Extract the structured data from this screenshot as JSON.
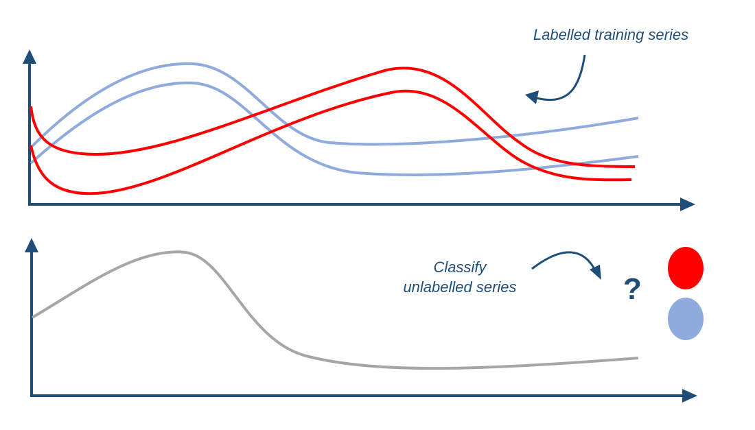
{
  "training_label": "Labelled training series",
  "classify_label_line1": "Classify",
  "classify_label_line2": "unlabelled series",
  "question_mark": "?",
  "colors": {
    "axis": "#1f4e79",
    "class_red": "#ff0000",
    "class_blue": "#8faadc",
    "unlabelled": "#a6a6a6",
    "text": "#1f4e79"
  },
  "training_series": [
    {
      "class": "blue"
    },
    {
      "class": "blue"
    },
    {
      "class": "red"
    },
    {
      "class": "red"
    }
  ],
  "classes": [
    "red",
    "blue"
  ]
}
